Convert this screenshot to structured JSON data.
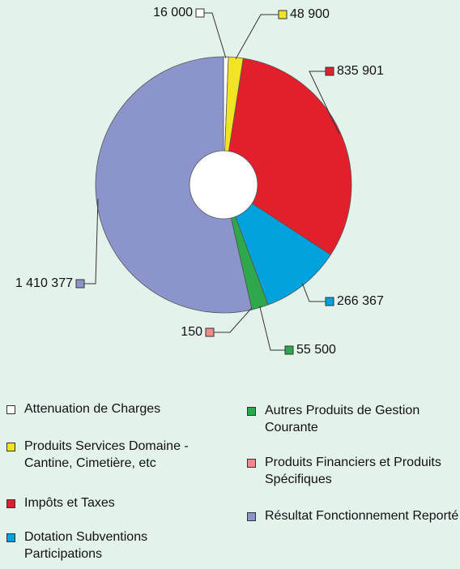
{
  "chart_data": {
    "type": "donut",
    "categories": [
      "Attenuation de Charges",
      "Produits Services Domaine - Cantine, Cimetière, etc",
      "Impôts et Taxes",
      "Dotation Subventions Participations",
      "Autres Produits de Gestion Courante",
      "Produits Financiers et Produits Spécifiques",
      "Résultat Fonctionnement Reporté"
    ],
    "values": [
      16000,
      48900,
      835901,
      266367,
      55500,
      150,
      1410377
    ],
    "value_labels": [
      "16 000",
      "48 900",
      "835 901",
      "266 367",
      "55 500",
      "150",
      "1 410 377"
    ],
    "colors": [
      "#ffffff",
      "#f3e423",
      "#e2202b",
      "#00a2de",
      "#2ea84a",
      "#f08a8a",
      "#8b95cc"
    ]
  }
}
